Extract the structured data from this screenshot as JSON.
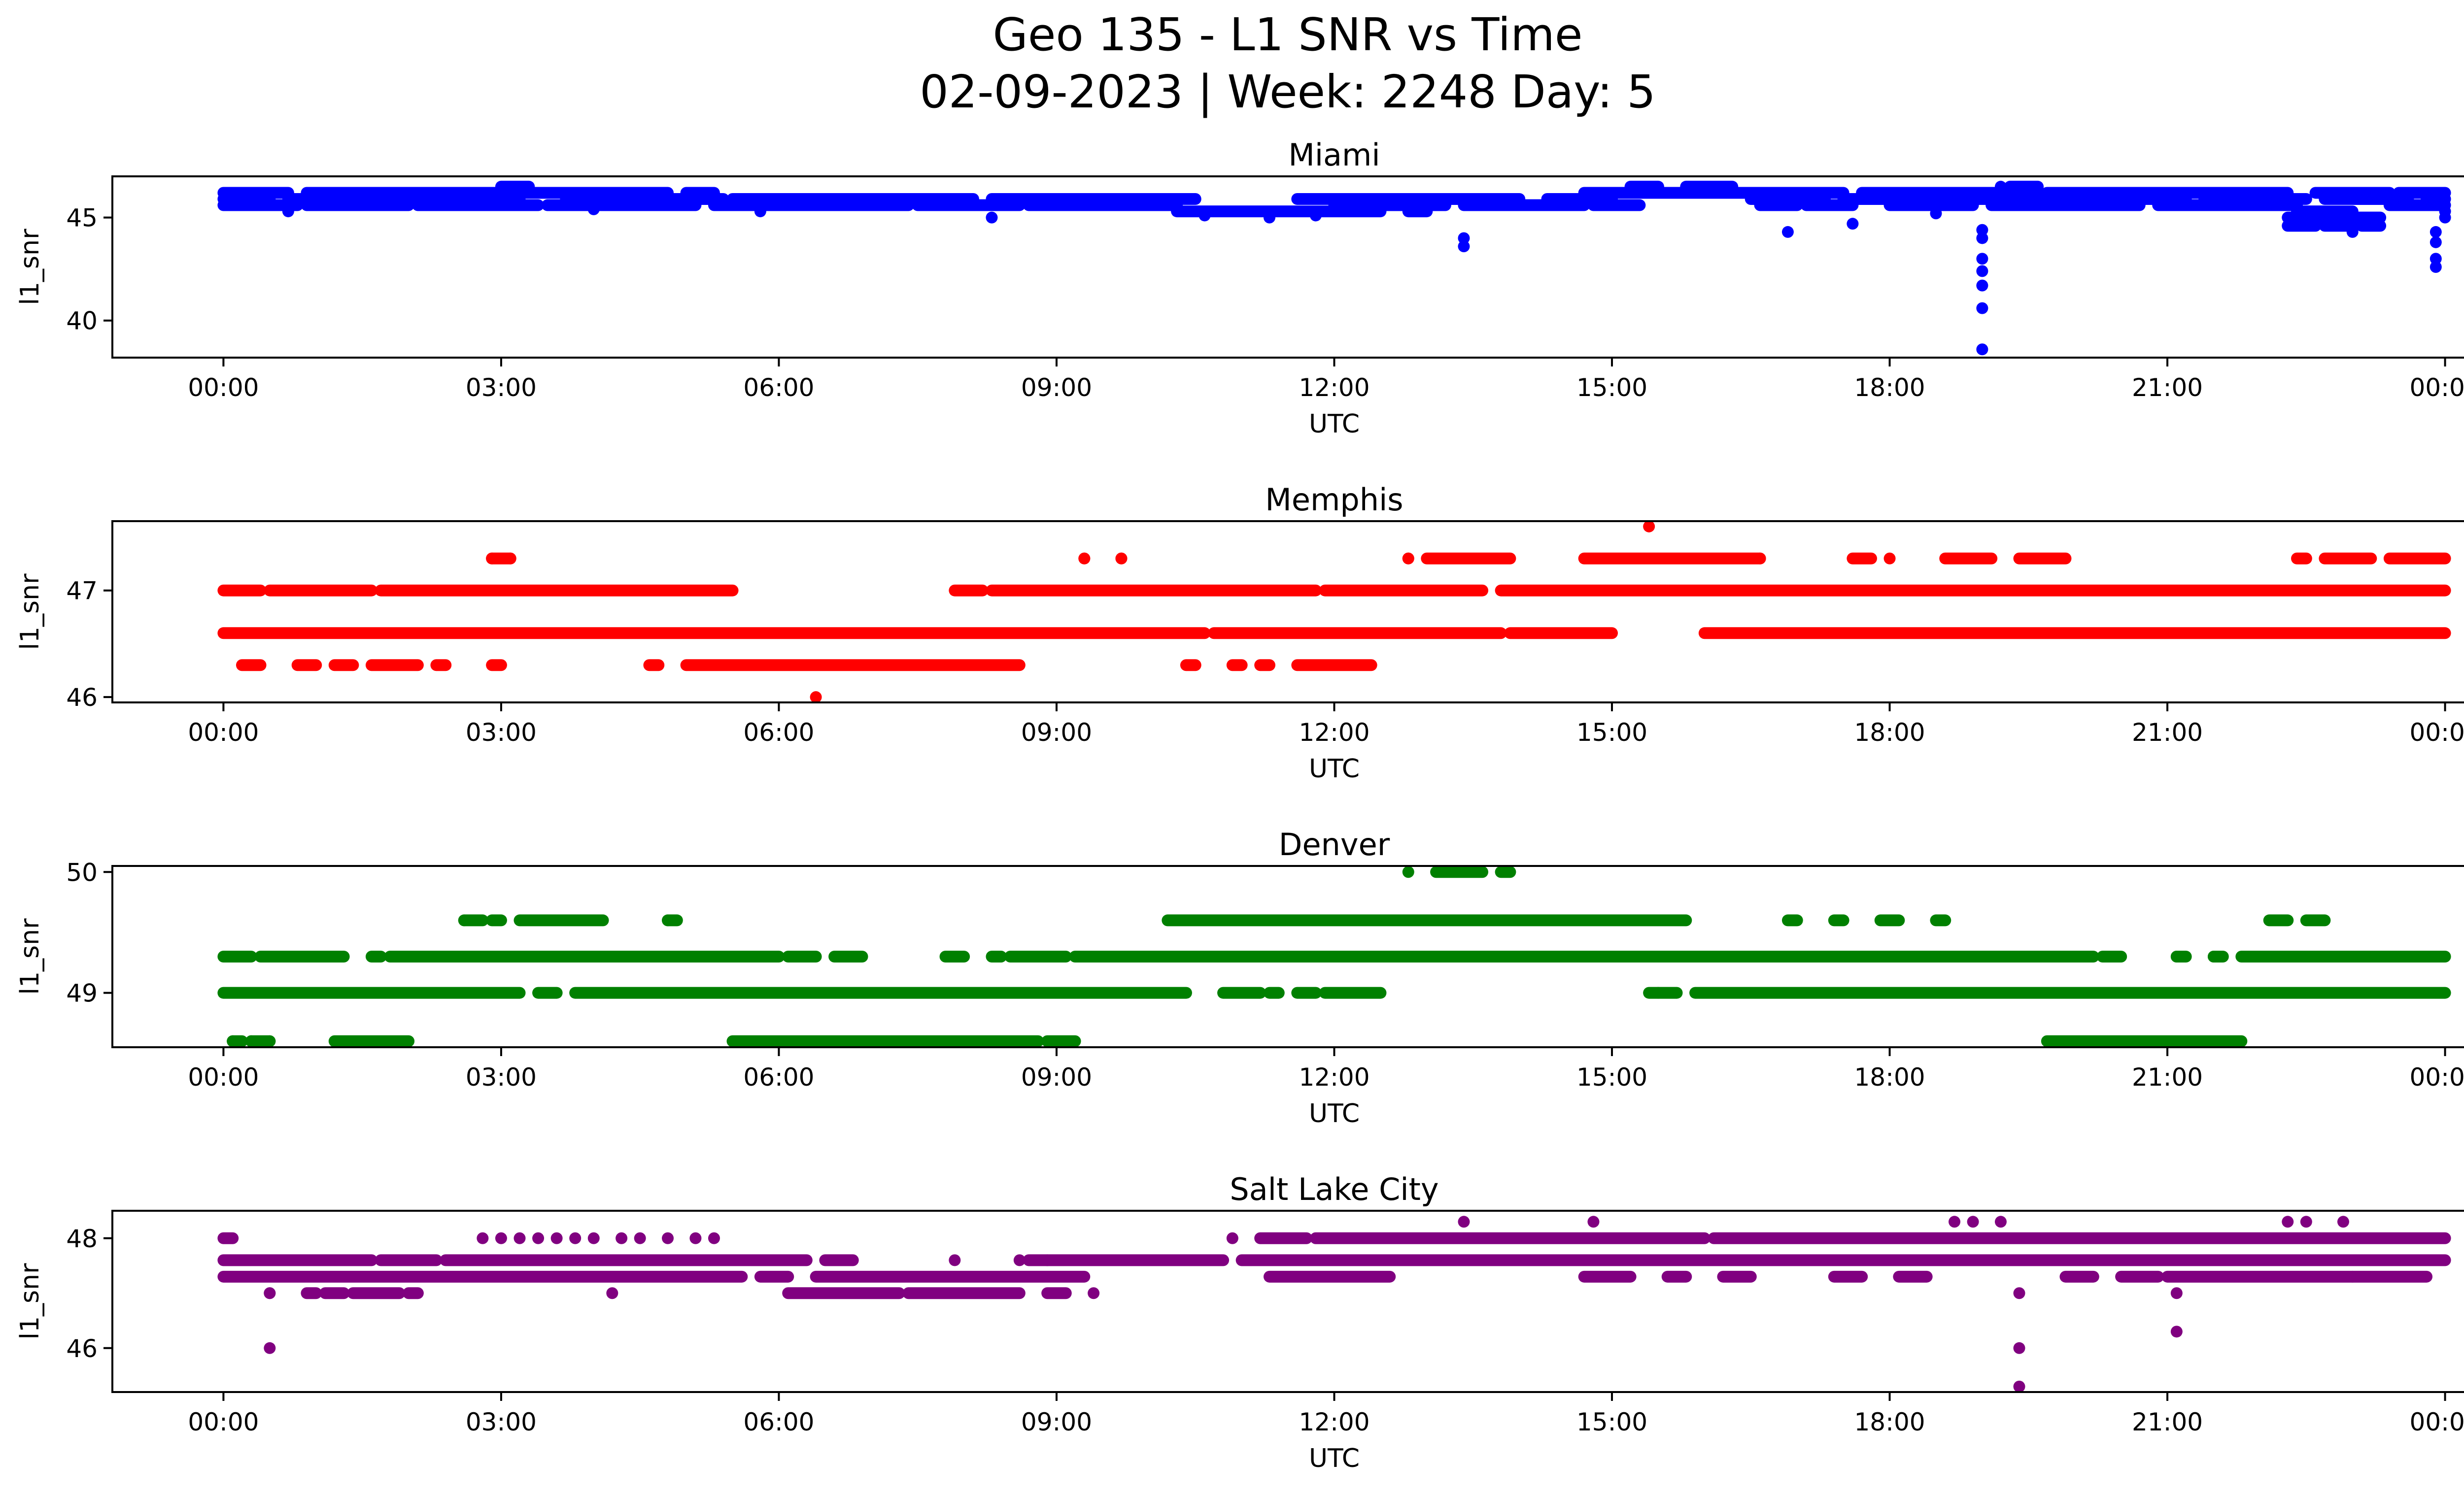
{
  "figure": {
    "title_line1": "Geo 135 - L1 SNR vs Time",
    "title_line2": "02-09-2023 | Week: 2248 Day: 5"
  },
  "chart_data": [
    {
      "type": "scatter",
      "title": "Miami",
      "xlabel": "UTC",
      "ylabel": "l1_snr",
      "color": "#0000ff",
      "x_ticks": [
        "00:00",
        "03:00",
        "06:00",
        "09:00",
        "12:00",
        "15:00",
        "18:00",
        "21:00",
        "00:00"
      ],
      "x_range_hours": [
        -1.2,
        25.2
      ],
      "y_ticks": [
        40,
        45
      ],
      "ylim": [
        38.2,
        47.0
      ],
      "bands": [
        {
          "y": 45.6,
          "ranges": [
            [
              0,
              0.8
            ],
            [
              0.9,
              2.0
            ],
            [
              2.1,
              3.4
            ],
            [
              3.5,
              5.1
            ],
            [
              5.3,
              7.4
            ],
            [
              7.5,
              8.6
            ],
            [
              8.7,
              10.3
            ],
            [
              12.0,
              13.2
            ],
            [
              13.4,
              14.7
            ],
            [
              14.8,
              15.3
            ],
            [
              16.6,
              17.0
            ],
            [
              17.1,
              17.6
            ],
            [
              18.0,
              18.9
            ],
            [
              19.1,
              20.7
            ],
            [
              20.9,
              22.4
            ],
            [
              23.4,
              24.0
            ]
          ]
        },
        {
          "y": 45.9,
          "ranges": [
            [
              0,
              0.5
            ],
            [
              0.7,
              3.2
            ],
            [
              3.7,
              5.4
            ],
            [
              5.5,
              8.1
            ],
            [
              8.3,
              10.5
            ],
            [
              11.6,
              14.0
            ],
            [
              14.3,
              15.0
            ],
            [
              16.5,
              17.3
            ],
            [
              17.5,
              18.6
            ],
            [
              18.7,
              21.2
            ],
            [
              21.4,
              22.5
            ],
            [
              22.7,
              23.6
            ],
            [
              23.8,
              24.0
            ]
          ]
        },
        {
          "y": 46.2,
          "ranges": [
            [
              0,
              0.7
            ],
            [
              0.9,
              4.8
            ],
            [
              5.0,
              5.3
            ],
            [
              14.7,
              17.5
            ],
            [
              17.7,
              19.6
            ],
            [
              19.7,
              22.3
            ],
            [
              22.6,
              23.4
            ],
            [
              23.5,
              24.0
            ]
          ]
        },
        {
          "y": 45.3,
          "ranges": [
            [
              10.3,
              12.5
            ],
            [
              12.8,
              13.0
            ],
            [
              22.4,
              23.0
            ]
          ]
        },
        {
          "y": 46.5,
          "ranges": [
            [
              3.0,
              3.3
            ],
            [
              15.2,
              15.5
            ],
            [
              15.8,
              16.3
            ],
            [
              19.3,
              19.6
            ]
          ]
        },
        {
          "y": 45.0,
          "ranges": [
            [
              22.3,
              22.9
            ],
            [
              23.0,
              23.3
            ]
          ]
        },
        {
          "y": 44.6,
          "ranges": [
            [
              22.3,
              22.6
            ],
            [
              22.7,
              23.0
            ],
            [
              23.1,
              23.3
            ]
          ]
        }
      ],
      "points": [
        [
          0.7,
          45.3
        ],
        [
          4.0,
          45.4
        ],
        [
          5.8,
          45.3
        ],
        [
          8.3,
          45.0
        ],
        [
          10.6,
          45.1
        ],
        [
          11.3,
          45.0
        ],
        [
          11.8,
          45.1
        ],
        [
          13.4,
          44.0
        ],
        [
          13.4,
          43.6
        ],
        [
          16.9,
          44.3
        ],
        [
          17.6,
          44.7
        ],
        [
          18.5,
          45.2
        ],
        [
          19.0,
          44.4
        ],
        [
          19.0,
          44.0
        ],
        [
          19.0,
          43.0
        ],
        [
          19.0,
          42.4
        ],
        [
          19.0,
          41.7
        ],
        [
          19.0,
          40.6
        ],
        [
          19.0,
          38.6
        ],
        [
          19.2,
          46.5
        ],
        [
          23.0,
          44.3
        ],
        [
          23.9,
          44.3
        ],
        [
          23.9,
          43.8
        ],
        [
          23.9,
          43.0
        ],
        [
          23.9,
          42.6
        ],
        [
          24.0,
          45.0
        ],
        [
          24.0,
          45.3
        ]
      ]
    },
    {
      "type": "scatter",
      "title": "Memphis",
      "xlabel": "UTC",
      "ylabel": "l1_snr",
      "color": "#ff0000",
      "x_ticks": [
        "00:00",
        "03:00",
        "06:00",
        "09:00",
        "12:00",
        "15:00",
        "18:00",
        "21:00",
        "00:00"
      ],
      "x_range_hours": [
        -1.2,
        25.2
      ],
      "y_ticks": [
        46,
        47
      ],
      "ylim": [
        45.95,
        47.65
      ],
      "bands": [
        {
          "y": 47.0,
          "ranges": [
            [
              0,
              0.4
            ],
            [
              0.5,
              1.6
            ],
            [
              1.7,
              5.5
            ],
            [
              7.9,
              8.2
            ],
            [
              8.3,
              11.8
            ],
            [
              11.9,
              13.6
            ],
            [
              13.8,
              24.0
            ]
          ]
        },
        {
          "y": 46.6,
          "ranges": [
            [
              0,
              10.6
            ],
            [
              10.7,
              13.8
            ],
            [
              13.9,
              15.0
            ],
            [
              16.0,
              24.0
            ]
          ]
        },
        {
          "y": 46.3,
          "ranges": [
            [
              0.2,
              0.4
            ],
            [
              0.8,
              1.0
            ],
            [
              1.2,
              1.4
            ],
            [
              1.6,
              2.1
            ],
            [
              2.3,
              2.4
            ],
            [
              2.9,
              3.0
            ],
            [
              4.6,
              4.7
            ],
            [
              5.0,
              8.6
            ],
            [
              10.4,
              10.5
            ],
            [
              10.9,
              11.0
            ],
            [
              11.2,
              11.3
            ],
            [
              11.6,
              12.4
            ]
          ]
        },
        {
          "y": 47.3,
          "ranges": [
            [
              2.9,
              3.1
            ],
            [
              9.3,
              9.3
            ],
            [
              9.7,
              9.7
            ],
            [
              12.8,
              12.8
            ],
            [
              13.0,
              13.9
            ],
            [
              14.7,
              16.6
            ],
            [
              17.6,
              17.8
            ],
            [
              18.6,
              19.1
            ],
            [
              19.4,
              19.9
            ],
            [
              22.4,
              22.5
            ],
            [
              22.7,
              23.2
            ],
            [
              23.4,
              24.0
            ]
          ]
        }
      ],
      "points": [
        [
          6.4,
          46.0
        ],
        [
          15.4,
          47.6
        ],
        [
          2.9,
          47.3
        ],
        [
          3.1,
          47.3
        ],
        [
          9.3,
          47.3
        ],
        [
          9.7,
          47.3
        ],
        [
          12.8,
          47.3
        ],
        [
          16.6,
          47.3
        ],
        [
          18.0,
          47.3
        ]
      ]
    },
    {
      "type": "scatter",
      "title": "Denver",
      "xlabel": "UTC",
      "ylabel": "l1_snr",
      "color": "#008000",
      "x_ticks": [
        "00:00",
        "03:00",
        "06:00",
        "09:00",
        "12:00",
        "15:00",
        "18:00",
        "21:00",
        "00:00"
      ],
      "x_range_hours": [
        -1.2,
        25.2
      ],
      "y_ticks": [
        49,
        50
      ],
      "ylim": [
        48.55,
        50.05
      ],
      "bands": [
        {
          "y": 49.0,
          "ranges": [
            [
              0,
              3.2
            ],
            [
              3.4,
              3.6
            ],
            [
              3.8,
              10.4
            ],
            [
              10.8,
              11.2
            ],
            [
              11.3,
              11.4
            ],
            [
              11.6,
              11.8
            ],
            [
              11.9,
              12.5
            ],
            [
              15.4,
              15.7
            ],
            [
              15.9,
              24.0
            ]
          ]
        },
        {
          "y": 49.3,
          "ranges": [
            [
              0,
              0.3
            ],
            [
              0.4,
              1.3
            ],
            [
              1.6,
              1.7
            ],
            [
              1.8,
              6.0
            ],
            [
              6.1,
              6.4
            ],
            [
              6.6,
              6.9
            ],
            [
              7.8,
              8.0
            ],
            [
              8.3,
              8.4
            ],
            [
              8.5,
              9.1
            ],
            [
              9.2,
              20.2
            ],
            [
              20.3,
              20.5
            ],
            [
              21.1,
              21.2
            ],
            [
              21.5,
              21.6
            ],
            [
              21.8,
              24.0
            ]
          ]
        },
        {
          "y": 49.6,
          "ranges": [
            [
              2.6,
              2.8
            ],
            [
              2.9,
              3.0
            ],
            [
              3.2,
              4.1
            ],
            [
              4.8,
              4.9
            ],
            [
              10.2,
              15.8
            ],
            [
              16.9,
              17.0
            ],
            [
              17.4,
              17.5
            ],
            [
              17.9,
              18.1
            ],
            [
              18.5,
              18.6
            ],
            [
              22.1,
              22.3
            ],
            [
              22.5,
              22.7
            ]
          ]
        },
        {
          "y": 48.6,
          "ranges": [
            [
              0.1,
              0.2
            ],
            [
              0.3,
              0.5
            ],
            [
              1.2,
              2.0
            ],
            [
              5.5,
              8.8
            ],
            [
              8.9,
              9.2
            ],
            [
              19.7,
              21.8
            ]
          ]
        },
        {
          "y": 50.0,
          "ranges": [
            [
              12.8,
              12.8
            ],
            [
              13.1,
              13.6
            ],
            [
              13.8,
              13.9
            ]
          ]
        }
      ],
      "points": [
        [
          0.1,
          48.6
        ],
        [
          0.3,
          48.6
        ],
        [
          0.5,
          48.6
        ],
        [
          2.6,
          49.6
        ],
        [
          4.8,
          49.6
        ],
        [
          15.5,
          49.0
        ],
        [
          21.1,
          49.3
        ],
        [
          21.5,
          49.3
        ]
      ]
    },
    {
      "type": "scatter",
      "title": "Salt Lake City",
      "xlabel": "UTC",
      "ylabel": "l1_snr",
      "color": "#800080",
      "x_ticks": [
        "00:00",
        "03:00",
        "06:00",
        "09:00",
        "12:00",
        "15:00",
        "18:00",
        "21:00",
        "00:00"
      ],
      "x_range_hours": [
        -1.2,
        25.2
      ],
      "y_ticks": [
        46,
        48
      ],
      "ylim": [
        45.2,
        48.5
      ],
      "bands": [
        {
          "y": 47.6,
          "ranges": [
            [
              0,
              1.6
            ],
            [
              1.7,
              2.3
            ],
            [
              2.4,
              6.3
            ],
            [
              6.5,
              6.8
            ],
            [
              8.7,
              8.9
            ],
            [
              8.9,
              10.8
            ],
            [
              11.0,
              24.0
            ]
          ]
        },
        {
          "y": 47.3,
          "ranges": [
            [
              0,
              5.6
            ],
            [
              5.8,
              6.1
            ],
            [
              6.4,
              9.3
            ],
            [
              11.3,
              12.6
            ],
            [
              16.2,
              16.5
            ],
            [
              21.0,
              23.0
            ],
            [
              23.0,
              23.8
            ]
          ]
        },
        {
          "y": 48.0,
          "ranges": [
            [
              0,
              0.1
            ],
            [
              11.2,
              11.7
            ],
            [
              11.8,
              16.0
            ],
            [
              16.1,
              24.0
            ]
          ]
        },
        {
          "y": 47.0,
          "ranges": [
            [
              0.5,
              0.5
            ],
            [
              0.9,
              1.0
            ],
            [
              1.1,
              1.3
            ],
            [
              1.4,
              1.9
            ],
            [
              2.0,
              2.1
            ],
            [
              6.1,
              7.3
            ],
            [
              7.4,
              8.6
            ],
            [
              8.9,
              9.1
            ],
            [
              9.4,
              9.4
            ]
          ]
        },
        {
          "y": 47.3,
          "ranges": [
            [
              14.7,
              15.2
            ],
            [
              15.6,
              15.8
            ],
            [
              17.4,
              17.7
            ],
            [
              18.1,
              18.4
            ],
            [
              19.9,
              20.2
            ],
            [
              20.5,
              20.9
            ]
          ]
        }
      ],
      "points": [
        [
          0.5,
          47.0
        ],
        [
          0.5,
          46.0
        ],
        [
          2.8,
          48.0
        ],
        [
          3.0,
          48.0
        ],
        [
          3.2,
          48.0
        ],
        [
          3.4,
          48.0
        ],
        [
          3.6,
          48.0
        ],
        [
          3.8,
          48.0
        ],
        [
          4.0,
          48.0
        ],
        [
          4.2,
          47.0
        ],
        [
          4.3,
          48.0
        ],
        [
          4.5,
          48.0
        ],
        [
          4.8,
          48.0
        ],
        [
          5.1,
          48.0
        ],
        [
          5.3,
          48.0
        ],
        [
          7.9,
          47.6
        ],
        [
          8.6,
          47.6
        ],
        [
          10.9,
          48.0
        ],
        [
          13.4,
          48.3
        ],
        [
          14.8,
          48.3
        ],
        [
          18.7,
          48.3
        ],
        [
          18.9,
          48.3
        ],
        [
          19.2,
          48.3
        ],
        [
          19.4,
          47.0
        ],
        [
          19.4,
          46.0
        ],
        [
          19.4,
          45.3
        ],
        [
          21.1,
          47.0
        ],
        [
          21.1,
          46.3
        ],
        [
          22.3,
          48.3
        ],
        [
          22.5,
          48.3
        ],
        [
          22.9,
          48.3
        ]
      ]
    }
  ]
}
